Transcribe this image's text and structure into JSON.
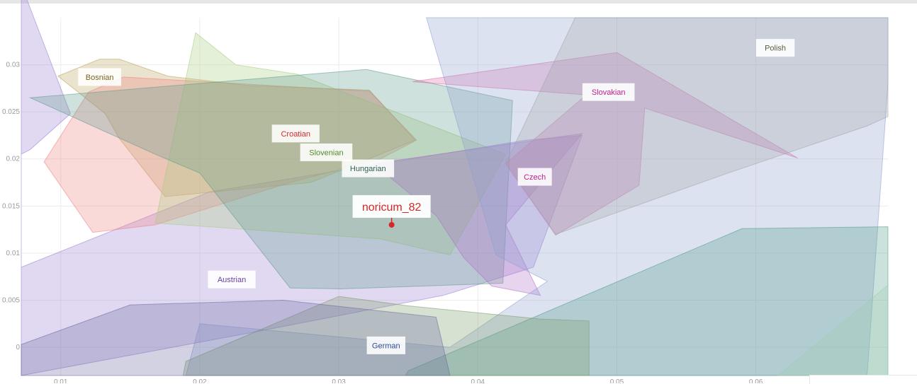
{
  "chart_data": {
    "type": "scatter",
    "title": "",
    "xlabel": "",
    "ylabel": "",
    "xlim": [
      0.00716,
      0.0695
    ],
    "ylim": [
      -0.003,
      0.035
    ],
    "xticks": [
      "0.01",
      "0.02",
      "0.03",
      "0.04",
      "0.05",
      "0.06"
    ],
    "xtick_values": [
      0.01,
      0.02,
      0.03,
      0.04,
      0.05,
      0.06
    ],
    "yticks": [
      "0",
      "0.005",
      "0.01",
      "0.015",
      "0.02",
      "0.025",
      "0.03"
    ],
    "ytick_values": [
      0,
      0.005,
      0.01,
      0.015,
      0.02,
      0.025,
      0.03
    ],
    "grid": true,
    "highlight_point": {
      "label": "noricum_82",
      "x": 0.0338,
      "y": 0.013,
      "color": "#d62728"
    },
    "groups": [
      {
        "name": "Austrian",
        "color": "#9b7fd4",
        "label_color": "#6a3fa0",
        "label_pos": [
          0.0223,
          0.0072
        ],
        "hull": [
          [
            0.00716,
            0.0385
          ],
          [
            0.0107,
            0.0248
          ],
          [
            0.0078,
            0.021
          ],
          [
            0.00716,
            0.0205
          ],
          [
            0.00716,
            0.0085
          ],
          [
            0.0207,
            0.0165
          ],
          [
            0.0435,
            0.022
          ],
          [
            0.0475,
            0.0225
          ],
          [
            0.044,
            0.0085
          ],
          [
            0.0375,
            0.0055
          ],
          [
            0.0235,
            0.0015
          ],
          [
            0.00716,
            -0.003
          ]
        ]
      },
      {
        "name": "Bosnian",
        "color": "#b8a35a",
        "label_color": "#7a6420",
        "label_pos": [
          0.0128,
          0.0287
        ],
        "hull": [
          [
            0.0098,
            0.0288
          ],
          [
            0.0128,
            0.0306
          ],
          [
            0.0142,
            0.0306
          ],
          [
            0.0177,
            0.0288
          ],
          [
            0.0235,
            0.0278
          ],
          [
            0.0322,
            0.0273
          ],
          [
            0.0355,
            0.022
          ],
          [
            0.028,
            0.0175
          ],
          [
            0.0175,
            0.016
          ],
          [
            0.0142,
            0.0222
          ],
          [
            0.0132,
            0.0248
          ]
        ]
      },
      {
        "name": "Croatian",
        "color": "#f08080",
        "label_color": "#d62728",
        "label_pos": [
          0.0269,
          0.0227
        ],
        "hull": [
          [
            0.012,
            0.0271
          ],
          [
            0.0145,
            0.0287
          ],
          [
            0.0322,
            0.0272
          ],
          [
            0.0356,
            0.022
          ],
          [
            0.033,
            0.02
          ],
          [
            0.0265,
            0.0175
          ],
          [
            0.0168,
            0.013
          ],
          [
            0.0123,
            0.0122
          ],
          [
            0.0088,
            0.0197
          ]
        ]
      },
      {
        "name": "Slovenian",
        "color": "#a8cc80",
        "label_color": "#4e8a28",
        "label_pos": [
          0.0291,
          0.0207
        ],
        "hull": [
          [
            0.0197,
            0.0334
          ],
          [
            0.0226,
            0.03
          ],
          [
            0.027,
            0.029
          ],
          [
            0.042,
            0.0205
          ],
          [
            0.038,
            0.0098
          ],
          [
            0.033,
            0.0115
          ],
          [
            0.0168,
            0.0132
          ]
        ]
      },
      {
        "name": "Hungarian",
        "color": "#5f9a8a",
        "label_color": "#2f5f50",
        "label_pos": [
          0.0321,
          0.019
        ],
        "hull": [
          [
            0.0078,
            0.0265
          ],
          [
            0.032,
            0.0295
          ],
          [
            0.0425,
            0.0262
          ],
          [
            0.0418,
            0.0068
          ],
          [
            0.0302,
            0.0062
          ],
          [
            0.0265,
            0.0063
          ],
          [
            0.02,
            0.0185
          ],
          [
            0.0168,
            0.0205
          ]
        ]
      },
      {
        "name": "Czech",
        "color": "#b070c8",
        "label_color": "#c0208a",
        "label_pos": [
          0.0441,
          0.0181
        ],
        "hull": [
          [
            0.0325,
            0.0195
          ],
          [
            0.0475,
            0.0227
          ],
          [
            0.042,
            0.013
          ],
          [
            0.0445,
            0.0055
          ],
          [
            0.041,
            0.0065
          ],
          [
            0.039,
            0.0095
          ],
          [
            0.037,
            0.014
          ]
        ]
      },
      {
        "name": "Slovakian",
        "color": "#e06aa8",
        "label_color": "#c0208a",
        "label_pos": [
          0.0494,
          0.0271
        ],
        "hull": [
          [
            0.0353,
            0.0282
          ],
          [
            0.05,
            0.0313
          ],
          [
            0.063,
            0.0201
          ],
          [
            0.052,
            0.0254
          ],
          [
            0.0516,
            0.0172
          ],
          [
            0.0456,
            0.0119
          ],
          [
            0.042,
            0.0195
          ],
          [
            0.0478,
            0.0268
          ]
        ]
      },
      {
        "name": "Polish",
        "color": "#a8a898",
        "label_color": "#5a5a40",
        "label_pos": [
          0.0614,
          0.0318
        ],
        "hull": [
          [
            0.047,
            0.035
          ],
          [
            0.0695,
            0.035
          ],
          [
            0.0695,
            0.0245
          ],
          [
            0.068,
            0.0235
          ],
          [
            0.058,
            0.0185
          ],
          [
            0.0456,
            0.012
          ],
          [
            0.042,
            0.0195
          ]
        ]
      },
      {
        "name": "German",
        "color": "#8ea0d0",
        "label_color": "#2e4a9a",
        "label_pos": [
          0.0334,
          0.0002
        ],
        "hull": [
          [
            0.0363,
            0.035
          ],
          [
            0.0695,
            0.035
          ],
          [
            0.0695,
            0.028
          ],
          [
            0.068,
            -0.003
          ],
          [
            0.019,
            -0.003
          ],
          [
            0.02,
            0.0025
          ],
          [
            0.038,
            0.0
          ],
          [
            0.045,
            0.007
          ],
          [
            0.0413,
            0.0098
          ]
        ]
      },
      {
        "name": "",
        "color": "#4e9a8a",
        "hull": [
          [
            0.0348,
            -0.003
          ],
          [
            0.035,
            -0.0025
          ],
          [
            0.059,
            0.0126
          ],
          [
            0.0695,
            0.0128
          ],
          [
            0.0695,
            -0.003
          ]
        ]
      },
      {
        "name": "",
        "color": "#a0ccb0",
        "hull": [
          [
            0.0616,
            -0.003
          ],
          [
            0.0695,
            0.0066
          ],
          [
            0.0695,
            -0.003
          ]
        ]
      },
      {
        "name": "",
        "color": "#7a9a6a",
        "hull": [
          [
            0.0188,
            -0.003
          ],
          [
            0.019,
            -0.0015
          ],
          [
            0.03,
            0.0054
          ],
          [
            0.035,
            0.0044
          ],
          [
            0.0445,
            0.003
          ],
          [
            0.048,
            0.0028
          ],
          [
            0.048,
            -0.003
          ]
        ]
      },
      {
        "name": "",
        "color": "#6a6aa0",
        "hull": [
          [
            0.00716,
            0.0003
          ],
          [
            0.015,
            0.0045
          ],
          [
            0.026,
            0.005
          ],
          [
            0.037,
            0.0032
          ],
          [
            0.038,
            -0.003
          ],
          [
            0.00716,
            -0.003
          ]
        ]
      }
    ]
  }
}
